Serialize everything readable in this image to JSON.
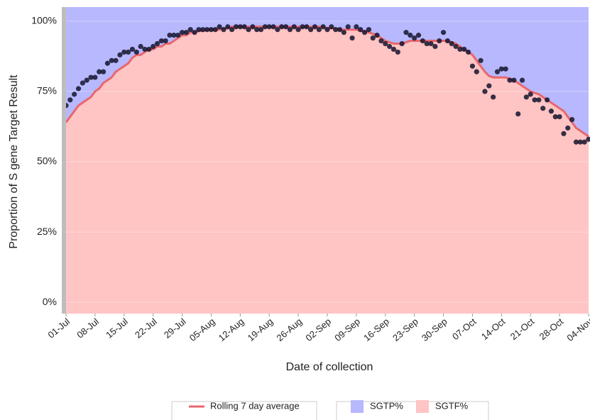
{
  "chart_data": {
    "type": "stacked-area",
    "y_label": "Proportion of S gene Target Result",
    "x_label": "Date of collection",
    "categories": [
      "01-Jul",
      null,
      null,
      null,
      null,
      null,
      null,
      "08-Jul",
      null,
      null,
      null,
      null,
      null,
      null,
      "15-Jul",
      null,
      null,
      null,
      null,
      null,
      null,
      "22-Jul",
      null,
      null,
      null,
      null,
      null,
      null,
      "29-Jul",
      null,
      null,
      null,
      null,
      null,
      null,
      "05-Aug",
      null,
      null,
      null,
      null,
      null,
      null,
      "12-Aug",
      null,
      null,
      null,
      null,
      null,
      null,
      "19-Aug",
      null,
      null,
      null,
      null,
      null,
      null,
      "26-Aug",
      null,
      null,
      null,
      null,
      null,
      null,
      "02-Sep",
      null,
      null,
      null,
      null,
      null,
      null,
      "09-Sep",
      null,
      null,
      null,
      null,
      null,
      null,
      "16-Sep",
      null,
      null,
      null,
      null,
      null,
      null,
      "23-Sep",
      null,
      null,
      null,
      null,
      null,
      null,
      "30-Sep",
      null,
      null,
      null,
      null,
      null,
      null,
      "07-Oct",
      null,
      null,
      null,
      null,
      null,
      null,
      "14-Oct",
      null,
      null,
      null,
      null,
      null,
      null,
      "21-Oct",
      null,
      null,
      null,
      null,
      null,
      null,
      "28-Oct",
      null,
      null,
      null,
      null,
      null,
      null,
      "04-Nov"
    ],
    "series": [
      {
        "name": "SGTF%",
        "color": "#ffc4c4",
        "values": [
          64,
          66,
          68,
          70,
          71,
          72,
          73,
          75,
          76,
          78,
          79,
          80,
          82,
          83,
          84,
          85,
          87,
          88,
          88,
          89,
          90,
          90,
          91,
          91,
          92,
          92,
          93,
          94,
          95,
          95,
          96,
          96,
          96.5,
          96.5,
          97,
          97,
          97,
          97,
          97.5,
          97.5,
          98,
          98,
          98,
          98,
          98,
          98,
          98,
          98,
          98,
          98,
          98,
          98,
          98,
          98,
          98,
          98,
          98,
          98,
          98,
          98,
          98,
          98,
          98,
          97.5,
          97.5,
          97.5,
          97,
          97,
          97,
          97,
          97,
          96.5,
          96.5,
          96,
          95.5,
          95,
          94,
          93,
          92.5,
          92,
          92,
          92,
          92.5,
          93,
          93,
          93,
          93,
          93,
          93,
          93,
          93,
          93,
          93,
          92.5,
          92,
          91,
          90,
          89,
          88,
          86,
          84,
          82,
          80.5,
          80,
          80,
          80,
          80,
          79.5,
          79,
          78,
          77,
          76,
          75,
          74.5,
          74,
          73,
          72,
          71,
          70,
          69,
          68,
          66,
          64,
          62,
          61,
          60,
          59
        ]
      },
      {
        "name": "SGTP%",
        "color": "#b8b8ff",
        "values": [
          36,
          34,
          32,
          30,
          29,
          28,
          27,
          25,
          24,
          22,
          21,
          20,
          18,
          17,
          16,
          15,
          13,
          12,
          12,
          11,
          10,
          10,
          9,
          9,
          8,
          8,
          7,
          6,
          5,
          5,
          4,
          4,
          3.5,
          3.5,
          3,
          3,
          3,
          3,
          2.5,
          2.5,
          2,
          2,
          2,
          2,
          2,
          2,
          2,
          2,
          2,
          2,
          2,
          2,
          2,
          2,
          2,
          2,
          2,
          2,
          2,
          2,
          2,
          2,
          2,
          2.5,
          2.5,
          2.5,
          3,
          3,
          3,
          3,
          3,
          3.5,
          3.5,
          4,
          4.5,
          5,
          6,
          7,
          7.5,
          8,
          8,
          8,
          7.5,
          7,
          7,
          7,
          7,
          7,
          7,
          7,
          7,
          7,
          7,
          7.5,
          8,
          9,
          10,
          11,
          12,
          14,
          16,
          18,
          19.5,
          20,
          20,
          20,
          20,
          20.5,
          21,
          22,
          23,
          24,
          25,
          25.5,
          26,
          27,
          28,
          29,
          30,
          31,
          32,
          34,
          36,
          38,
          39,
          40,
          41
        ]
      }
    ],
    "line": {
      "name": "Rolling 7 day average",
      "color": "#e8676d"
    },
    "points": {
      "color": "#14142e",
      "values": [
        70,
        72,
        74,
        76,
        78,
        79,
        80,
        80,
        82,
        82,
        85,
        86,
        86,
        88,
        89,
        89,
        90,
        89,
        91,
        90,
        90,
        91,
        92,
        93,
        93,
        95,
        95,
        95,
        96,
        96,
        97,
        96,
        97,
        97,
        97,
        97,
        97,
        98,
        97,
        98,
        97,
        98,
        98,
        98,
        97,
        98,
        97,
        97,
        98,
        98,
        98,
        97,
        98,
        98,
        97,
        98,
        97,
        98,
        98,
        97,
        98,
        97,
        98,
        97,
        98,
        97,
        97,
        96,
        98,
        94,
        98,
        97,
        96,
        97,
        94,
        95,
        93,
        92,
        91,
        90,
        89,
        92,
        96,
        95,
        94,
        95,
        93,
        92,
        92,
        91,
        93,
        96,
        93,
        92,
        91,
        90,
        90,
        89,
        84,
        82,
        86,
        75,
        77,
        73,
        82,
        83,
        83,
        79,
        79,
        67,
        79,
        73,
        74,
        72,
        72,
        69,
        72,
        68,
        66,
        66,
        60,
        62,
        65,
        57,
        57,
        57,
        58
      ]
    },
    "ylim": [
      -4,
      105
    ],
    "yticks": [
      {
        "value": 0,
        "label": "0%"
      },
      {
        "value": 25,
        "label": "25%"
      },
      {
        "value": 50,
        "label": "50%"
      },
      {
        "value": 75,
        "label": "75%"
      },
      {
        "value": 100,
        "label": "100%"
      }
    ],
    "grid": true
  }
}
